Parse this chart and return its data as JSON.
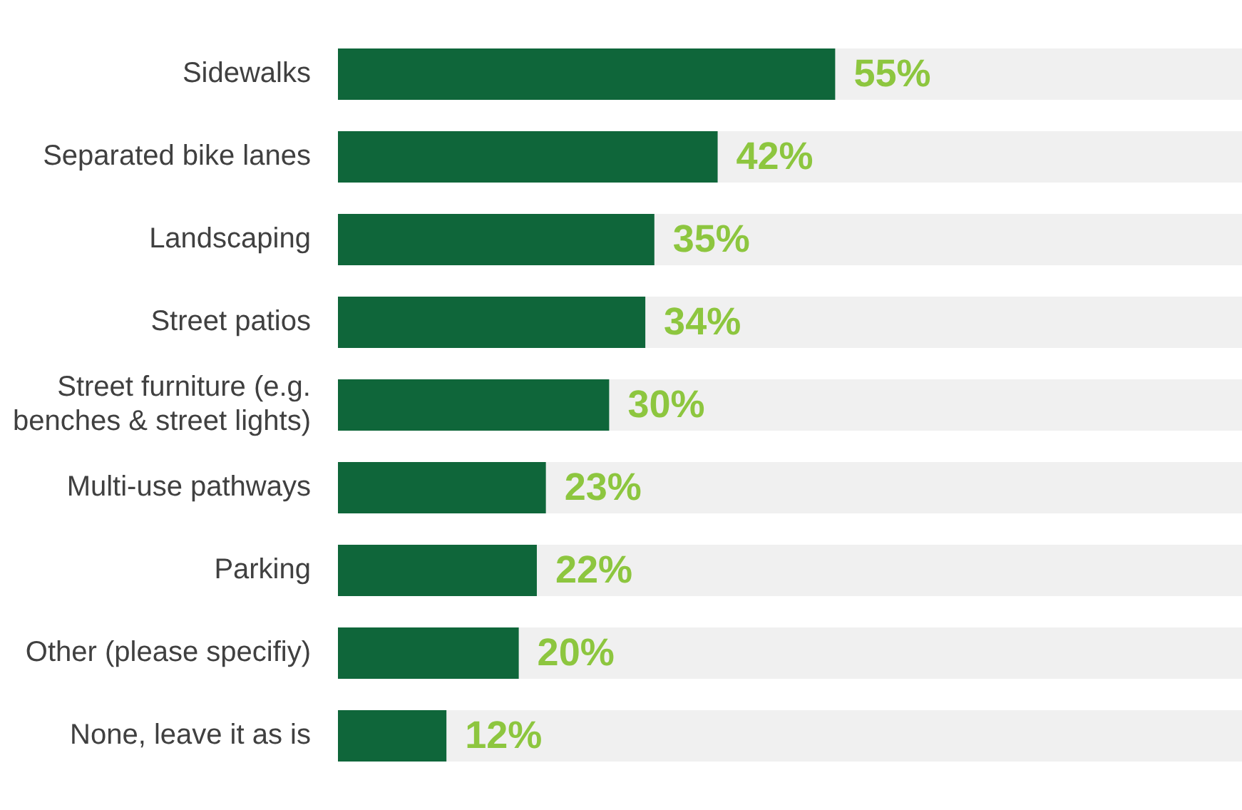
{
  "chart_data": {
    "type": "bar",
    "orientation": "horizontal",
    "categories": [
      "Sidewalks",
      "Separated bike lanes",
      "Landscaping",
      "Street patios",
      "Street furniture (e.g. benches & street lights)",
      "Multi-use pathways",
      "Parking",
      "Other (please specifiy)",
      "None, leave it as is"
    ],
    "values": [
      55,
      42,
      35,
      34,
      30,
      23,
      22,
      20,
      12
    ],
    "value_labels": [
      "55%",
      "42%",
      "35%",
      "34%",
      "30%",
      "23%",
      "22%",
      "20%",
      "12%"
    ],
    "color": "#0f663a",
    "xlim": [
      0,
      100
    ],
    "tick_labels": "y",
    "grid": false,
    "legend": false
  }
}
